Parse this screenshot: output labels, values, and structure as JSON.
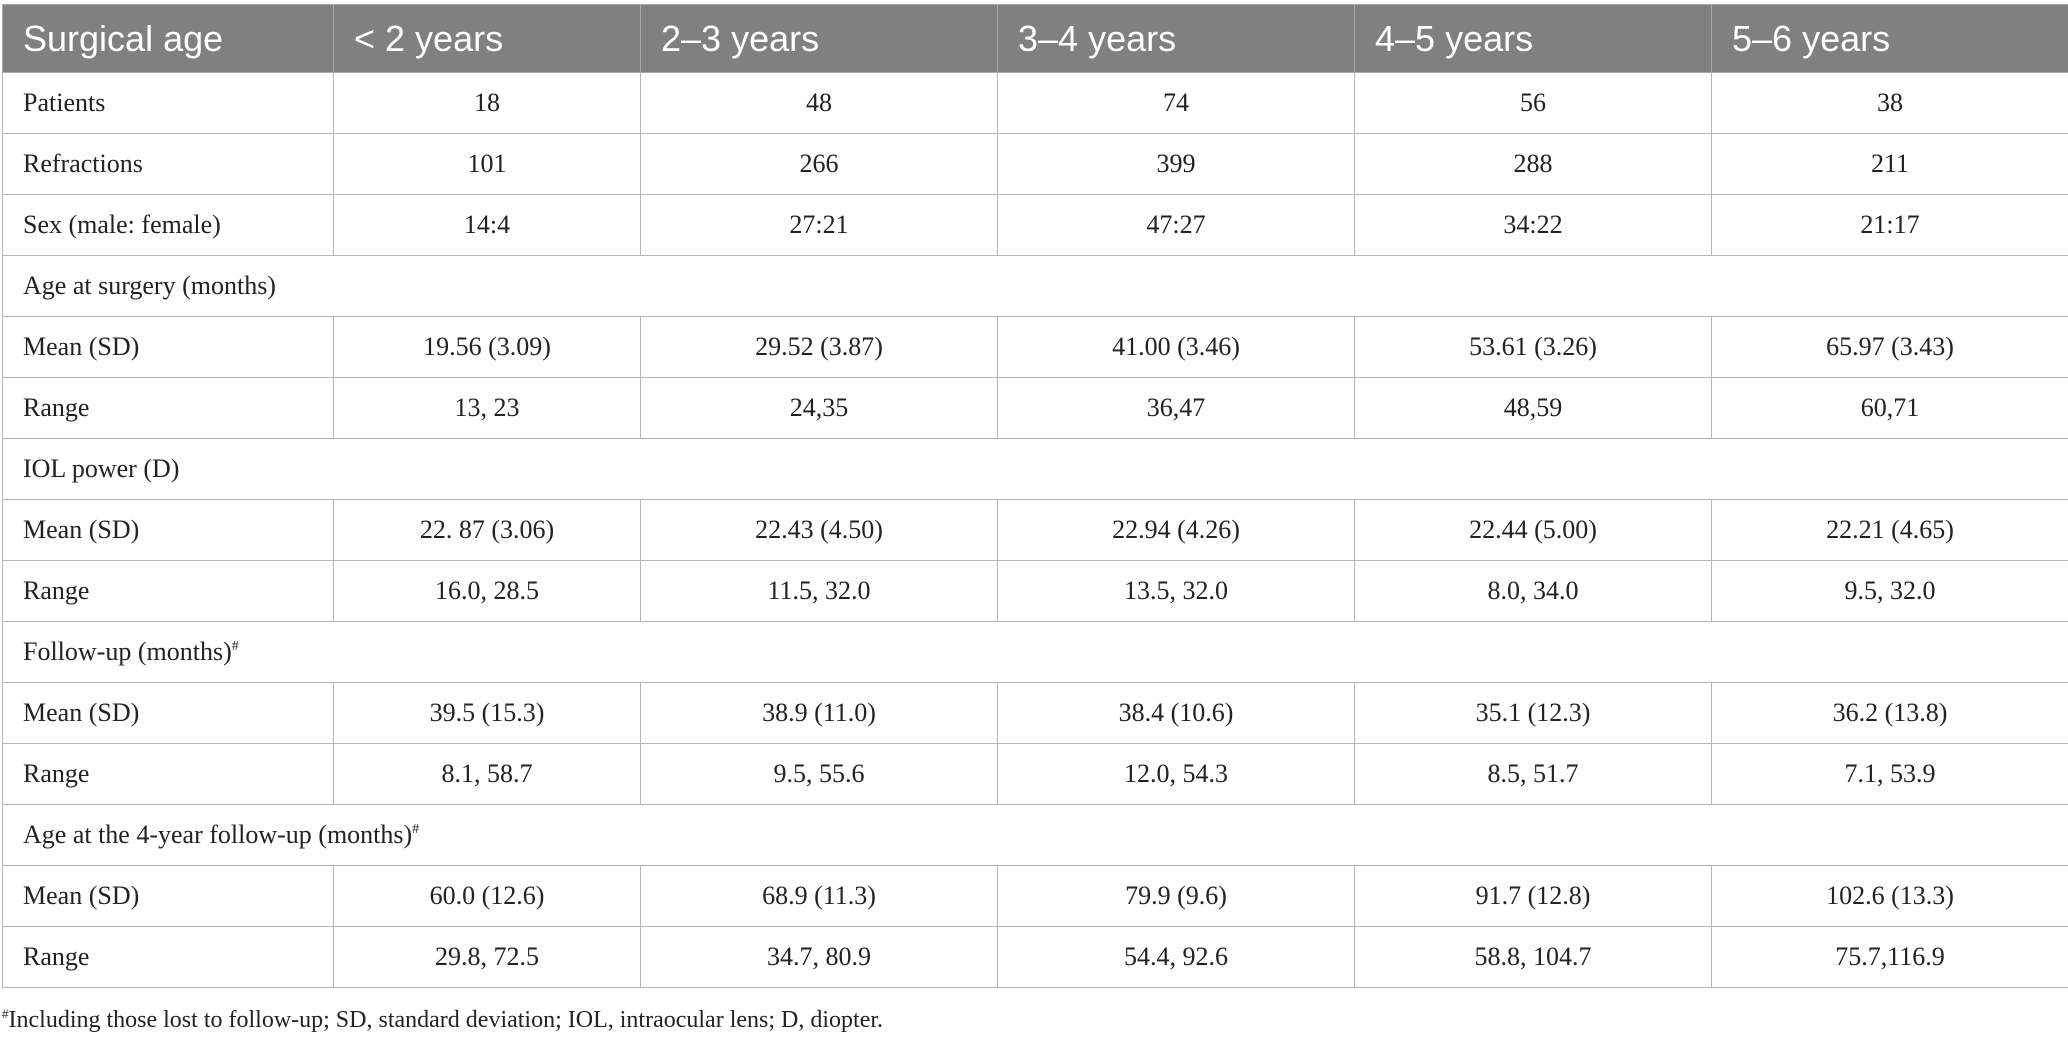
{
  "table": {
    "headers": [
      "Surgical age",
      "< 2 years",
      "2–3 years",
      "3–4 years",
      "4–5 years",
      "5–6 years"
    ],
    "row_patients": {
      "label": "Patients",
      "values": [
        "18",
        "48",
        "74",
        "56",
        "38"
      ]
    },
    "row_refractions": {
      "label": "Refractions",
      "values": [
        "101",
        "266",
        "399",
        "288",
        "211"
      ]
    },
    "row_sex": {
      "label": "Sex (male: female)",
      "values": [
        "14:4",
        "27:21",
        "47:27",
        "34:22",
        "21:17"
      ]
    },
    "sec_age_surgery": {
      "label": "Age at surgery (months)"
    },
    "age_surgery_mean": {
      "label": "Mean (SD)",
      "values": [
        "19.56 (3.09)",
        "29.52 (3.87)",
        "41.00 (3.46)",
        "53.61 (3.26)",
        "65.97 (3.43)"
      ]
    },
    "age_surgery_range": {
      "label": "Range",
      "values": [
        "13, 23",
        "24,35",
        "36,47",
        "48,59",
        "60,71"
      ]
    },
    "sec_iol": {
      "label": "IOL power (D)"
    },
    "iol_mean": {
      "label": "Mean (SD)",
      "values": [
        "22. 87 (3.06)",
        "22.43 (4.50)",
        "22.94 (4.26)",
        "22.44 (5.00)",
        "22.21 (4.65)"
      ]
    },
    "iol_range": {
      "label": "Range",
      "values": [
        "16.0, 28.5",
        "11.5, 32.0",
        "13.5, 32.0",
        "8.0, 34.0",
        "9.5, 32.0"
      ]
    },
    "sec_followup": {
      "label": "Follow-up (months)",
      "mark": "#"
    },
    "followup_mean": {
      "label": "Mean (SD)",
      "values": [
        "39.5 (15.3)",
        "38.9 (11.0)",
        "38.4 (10.6)",
        "35.1 (12.3)",
        "36.2 (13.8)"
      ]
    },
    "followup_range": {
      "label": "Range",
      "values": [
        "8.1, 58.7",
        "9.5, 55.6",
        "12.0, 54.3",
        "8.5, 51.7",
        "7.1, 53.9"
      ]
    },
    "sec_age4y": {
      "label": "Age at the 4-year follow-up (months)",
      "mark": "#"
    },
    "age4y_mean": {
      "label": "Mean (SD)",
      "values": [
        "60.0 (12.6)",
        "68.9 (11.3)",
        "79.9 (9.6)",
        "91.7 (12.8)",
        "102.6 (13.3)"
      ]
    },
    "age4y_range": {
      "label": "Range",
      "values": [
        "29.8, 72.5",
        "34.7, 80.9",
        "54.4, 92.6",
        "58.8, 104.7",
        "75.7,116.9"
      ]
    }
  },
  "footnote": {
    "mark": "#",
    "text": "Including those lost to follow-up; SD, standard deviation; IOL, intraocular lens; D, diopter."
  },
  "colors": {
    "header_bg": "#808080",
    "header_text": "#ffffff",
    "grid": "#b5b5b5"
  }
}
